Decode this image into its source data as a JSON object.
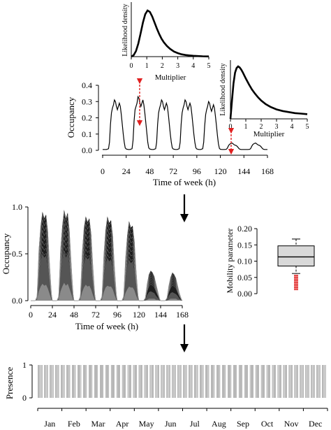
{
  "chart_data": [
    {
      "id": "density_top",
      "type": "line",
      "xlabel": "Multiplier",
      "ylabel": "Likelihood density",
      "xlim": [
        0,
        5
      ],
      "xticks": [
        "0",
        "1",
        "2",
        "3",
        "4",
        "5"
      ],
      "grid": false,
      "series": [
        {
          "x": [
            0,
            0.15,
            0.3,
            0.45,
            0.6,
            0.75,
            0.9,
            1.05,
            1.2,
            1.35,
            1.5,
            1.65,
            1.8,
            1.95,
            2.1,
            2.3,
            2.5,
            2.75,
            3,
            3.25,
            3.5,
            3.75,
            4,
            4.3,
            4.6,
            5
          ],
          "y": [
            0,
            0.03,
            0.12,
            0.28,
            0.5,
            0.74,
            0.92,
            1.0,
            0.97,
            0.87,
            0.74,
            0.61,
            0.49,
            0.39,
            0.31,
            0.23,
            0.17,
            0.11,
            0.075,
            0.05,
            0.035,
            0.025,
            0.018,
            0.012,
            0.008,
            0.005
          ]
        }
      ]
    },
    {
      "id": "occupancy_week",
      "type": "line",
      "xlabel": "Time of week (h)",
      "ylabel": "Occupancy",
      "xlim": [
        0,
        168
      ],
      "ylim": [
        0,
        0.4
      ],
      "xticks": [
        "0",
        "24",
        "48",
        "72",
        "96",
        "120",
        "144",
        "168"
      ],
      "yticks": [
        "0.0",
        "0.1",
        "0.2",
        "0.3",
        "0.4"
      ],
      "grid": false,
      "series": [
        {
          "x": [
            0,
            2,
            4,
            6,
            7,
            8,
            9,
            10,
            11,
            12,
            13,
            14,
            15,
            16,
            17,
            18,
            19,
            20,
            21,
            22,
            23,
            24,
            26,
            28,
            30,
            31,
            32,
            33,
            34,
            35,
            36,
            37,
            38,
            39,
            40,
            41,
            42,
            43,
            44,
            45,
            46,
            47,
            48,
            50,
            52,
            54,
            55,
            56,
            57,
            58,
            59,
            60,
            61,
            62,
            63,
            64,
            65,
            66,
            67,
            68,
            69,
            70,
            71,
            72,
            74,
            76,
            78,
            79,
            80,
            81,
            82,
            83,
            84,
            85,
            86,
            87,
            88,
            89,
            90,
            91,
            92,
            93,
            94,
            95,
            96,
            98,
            100,
            102,
            103,
            104,
            105,
            106,
            107,
            108,
            109,
            110,
            111,
            112,
            113,
            114,
            115,
            116,
            117,
            118,
            119,
            120,
            122,
            124,
            126,
            127,
            128,
            129,
            130,
            131,
            132,
            133,
            134,
            135,
            136,
            137,
            138,
            139,
            140,
            141,
            142,
            143,
            144,
            146,
            148,
            150,
            151,
            152,
            153,
            154,
            155,
            156,
            157,
            158,
            159,
            160,
            161,
            162,
            163,
            164,
            165,
            166,
            168
          ],
          "y": [
            0.005,
            0.005,
            0.005,
            0.01,
            0.05,
            0.16,
            0.23,
            0.26,
            0.28,
            0.31,
            0.3,
            0.27,
            0.25,
            0.27,
            0.29,
            0.27,
            0.22,
            0.16,
            0.1,
            0.05,
            0.015,
            0.008,
            0.005,
            0.005,
            0.01,
            0.06,
            0.18,
            0.25,
            0.27,
            0.29,
            0.33,
            0.32,
            0.29,
            0.27,
            0.29,
            0.31,
            0.28,
            0.23,
            0.17,
            0.11,
            0.05,
            0.015,
            0.008,
            0.005,
            0.005,
            0.01,
            0.05,
            0.16,
            0.23,
            0.26,
            0.28,
            0.31,
            0.3,
            0.27,
            0.25,
            0.27,
            0.29,
            0.27,
            0.22,
            0.16,
            0.1,
            0.05,
            0.015,
            0.008,
            0.005,
            0.005,
            0.01,
            0.05,
            0.16,
            0.23,
            0.26,
            0.28,
            0.31,
            0.3,
            0.27,
            0.25,
            0.27,
            0.29,
            0.27,
            0.22,
            0.16,
            0.1,
            0.05,
            0.015,
            0.008,
            0.005,
            0.005,
            0.01,
            0.05,
            0.15,
            0.22,
            0.25,
            0.27,
            0.3,
            0.29,
            0.26,
            0.24,
            0.26,
            0.28,
            0.26,
            0.21,
            0.15,
            0.09,
            0.04,
            0.012,
            0.006,
            0.005,
            0.005,
            0.006,
            0.012,
            0.025,
            0.035,
            0.04,
            0.043,
            0.045,
            0.04,
            0.035,
            0.032,
            0.03,
            0.025,
            0.018,
            0.01,
            0.007,
            0.005,
            0.005,
            0.005,
            0.005,
            0.005,
            0.005,
            0.006,
            0.012,
            0.025,
            0.035,
            0.04,
            0.043,
            0.045,
            0.04,
            0.035,
            0.032,
            0.03,
            0.025,
            0.018,
            0.01,
            0.007,
            0.005,
            0.005,
            0.005
          ]
        }
      ]
    },
    {
      "id": "density_right",
      "type": "line",
      "xlabel": "Multiplier",
      "ylabel": "Likelihood density",
      "xlim": [
        0,
        5
      ],
      "xticks": [
        "0",
        "1",
        "2",
        "3",
        "4",
        "5"
      ],
      "grid": false,
      "series": [
        {
          "x": [
            0,
            0.1,
            0.2,
            0.3,
            0.4,
            0.5,
            0.6,
            0.7,
            0.8,
            0.9,
            1.0,
            1.2,
            1.4,
            1.6,
            1.8,
            2.0,
            2.3,
            2.6,
            3.0,
            3.4,
            3.8,
            4.2,
            4.6,
            5
          ],
          "y": [
            0,
            0.35,
            0.68,
            0.88,
            0.97,
            1.0,
            0.98,
            0.94,
            0.89,
            0.83,
            0.77,
            0.66,
            0.56,
            0.48,
            0.41,
            0.35,
            0.28,
            0.23,
            0.18,
            0.15,
            0.13,
            0.11,
            0.1,
            0.09
          ]
        }
      ]
    },
    {
      "id": "occupancy_ensemble",
      "type": "area",
      "xlabel": "Time of week (h)",
      "ylabel": "Occupancy",
      "xlim": [
        0,
        168
      ],
      "ylim": [
        0,
        1
      ],
      "xticks": [
        "0",
        "24",
        "48",
        "72",
        "96",
        "120",
        "144",
        "168"
      ],
      "yticks": [
        "0.0",
        "0.5",
        "1.0"
      ],
      "grid": false,
      "series": [
        {
          "x": [
            0,
            5,
            7,
            9,
            11,
            13,
            15,
            17,
            19,
            21,
            23,
            24,
            29,
            31,
            33,
            35,
            37,
            39,
            41,
            43,
            45,
            47,
            48,
            53,
            55,
            57,
            59,
            61,
            63,
            65,
            67,
            69,
            71,
            72,
            77,
            79,
            81,
            83,
            85,
            87,
            89,
            91,
            93,
            95,
            96,
            101,
            103,
            105,
            107,
            109,
            111,
            113,
            115,
            117,
            119,
            120,
            125,
            127,
            129,
            131,
            133,
            135,
            137,
            139,
            141,
            143,
            144,
            149,
            151,
            153,
            155,
            157,
            159,
            161,
            163,
            165,
            167,
            168
          ],
          "y": [
            0,
            0,
            0.05,
            0.55,
            0.8,
            0.95,
            0.88,
            0.92,
            0.75,
            0.4,
            0.08,
            0,
            0,
            0.05,
            0.55,
            0.8,
            0.97,
            0.88,
            0.94,
            0.75,
            0.4,
            0.08,
            0,
            0,
            0.05,
            0.52,
            0.78,
            0.9,
            0.84,
            0.88,
            0.72,
            0.38,
            0.08,
            0,
            0,
            0.05,
            0.5,
            0.76,
            0.9,
            0.83,
            0.86,
            0.7,
            0.36,
            0.07,
            0,
            0,
            0.05,
            0.45,
            0.7,
            0.85,
            0.78,
            0.8,
            0.64,
            0.32,
            0.06,
            0,
            0,
            0.03,
            0.18,
            0.28,
            0.32,
            0.3,
            0.26,
            0.18,
            0.1,
            0.02,
            0,
            0,
            0.03,
            0.16,
            0.25,
            0.3,
            0.28,
            0.24,
            0.16,
            0.08,
            0.02,
            0
          ]
        },
        {
          "x": [
            0,
            5,
            7,
            9,
            11,
            13,
            15,
            17,
            19,
            21,
            23,
            24,
            29,
            31,
            33,
            35,
            37,
            39,
            41,
            43,
            45,
            47,
            48,
            53,
            55,
            57,
            59,
            61,
            63,
            65,
            67,
            69,
            71,
            72,
            77,
            79,
            81,
            83,
            85,
            87,
            89,
            91,
            93,
            95,
            96,
            101,
            103,
            105,
            107,
            109,
            111,
            113,
            115,
            117,
            119,
            120,
            125,
            127,
            129,
            131,
            133,
            135,
            137,
            139,
            141,
            143,
            144,
            149,
            151,
            153,
            155,
            157,
            159,
            161,
            163,
            165,
            167,
            168
          ],
          "y": [
            0,
            0,
            0.03,
            0.28,
            0.42,
            0.5,
            0.46,
            0.48,
            0.38,
            0.2,
            0.04,
            0,
            0,
            0.03,
            0.28,
            0.42,
            0.52,
            0.46,
            0.5,
            0.38,
            0.2,
            0.04,
            0,
            0,
            0.03,
            0.26,
            0.4,
            0.47,
            0.44,
            0.46,
            0.36,
            0.19,
            0.04,
            0,
            0,
            0.03,
            0.25,
            0.39,
            0.46,
            0.42,
            0.44,
            0.35,
            0.18,
            0.03,
            0,
            0,
            0.03,
            0.23,
            0.36,
            0.44,
            0.4,
            0.42,
            0.32,
            0.16,
            0.03,
            0,
            0,
            0.01,
            0.06,
            0.09,
            0.1,
            0.09,
            0.08,
            0.05,
            0.03,
            0.01,
            0,
            0,
            0.01,
            0.05,
            0.08,
            0.09,
            0.08,
            0.07,
            0.05,
            0.02,
            0.01,
            0
          ]
        },
        {
          "x": [
            0,
            5,
            7,
            9,
            11,
            13,
            15,
            17,
            19,
            21,
            23,
            24,
            29,
            31,
            33,
            35,
            37,
            39,
            41,
            43,
            45,
            47,
            48,
            53,
            55,
            57,
            59,
            61,
            63,
            65,
            67,
            69,
            71,
            72,
            77,
            79,
            81,
            83,
            85,
            87,
            89,
            91,
            93,
            95,
            96,
            101,
            103,
            105,
            107,
            109,
            111,
            113,
            115,
            117,
            119,
            120,
            125,
            127,
            129,
            131,
            133,
            135,
            137,
            139,
            141,
            143,
            144,
            149,
            151,
            153,
            155,
            157,
            159,
            161,
            163,
            165,
            167,
            168
          ],
          "y": [
            0,
            0,
            0.01,
            0.1,
            0.15,
            0.18,
            0.16,
            0.17,
            0.13,
            0.07,
            0.01,
            0,
            0,
            0.01,
            0.1,
            0.15,
            0.19,
            0.16,
            0.18,
            0.13,
            0.07,
            0.01,
            0,
            0,
            0.01,
            0.09,
            0.14,
            0.17,
            0.15,
            0.16,
            0.12,
            0.06,
            0.01,
            0,
            0,
            0.01,
            0.09,
            0.14,
            0.16,
            0.15,
            0.15,
            0.12,
            0.06,
            0.01,
            0,
            0,
            0.01,
            0.08,
            0.12,
            0.15,
            0.14,
            0.14,
            0.11,
            0.05,
            0.01,
            0,
            0,
            0,
            0.01,
            0.02,
            0.02,
            0.02,
            0.02,
            0.01,
            0.01,
            0,
            0,
            0,
            0,
            0.01,
            0.02,
            0.02,
            0.02,
            0.02,
            0.01,
            0.01,
            0,
            0
          ]
        }
      ]
    },
    {
      "id": "mobility_box",
      "type": "box",
      "ylabel": "Mobility parameter",
      "ylim": [
        0,
        0.2
      ],
      "yticks": [
        "0.00",
        "0.05",
        "0.10",
        "0.15",
        "0.20"
      ],
      "box": {
        "whisker_low": 0.062,
        "q1": 0.085,
        "median": 0.113,
        "q3": 0.147,
        "whisker_high": 0.168
      },
      "outliers": [
        0.012,
        0.015,
        0.018,
        0.021,
        0.024,
        0.027,
        0.03,
        0.033,
        0.036,
        0.039,
        0.042,
        0.045,
        0.048,
        0.051,
        0.054,
        0.057
      ],
      "outlier_color": "#e02020"
    },
    {
      "id": "presence_year",
      "type": "bar",
      "ylabel": "Presence",
      "yticks": [
        "0",
        "1"
      ],
      "xtick_labels": [
        "Jan",
        "Feb",
        "Mar",
        "Apr",
        "May",
        "Jun",
        "Jul",
        "Aug",
        "Sep",
        "Oct",
        "Nov",
        "Dec"
      ],
      "n_days": 365,
      "absent_days": [
        6,
        7,
        13,
        14,
        20,
        21,
        27,
        28,
        34,
        35,
        41,
        42,
        48,
        49,
        55,
        56,
        62,
        63,
        69,
        70,
        76,
        77,
        83,
        84,
        90,
        91,
        97,
        98,
        104,
        105,
        111,
        112,
        118,
        119,
        125,
        126,
        132,
        133,
        139,
        140,
        146,
        147,
        153,
        154,
        160,
        161,
        167,
        168,
        174,
        175,
        181,
        182,
        188,
        189,
        195,
        196,
        202,
        203,
        209,
        210,
        216,
        217,
        223,
        224,
        230,
        231,
        237,
        238,
        244,
        245,
        251,
        252,
        258,
        259,
        265,
        266,
        272,
        273,
        279,
        280,
        286,
        287,
        293,
        294,
        300,
        301,
        307,
        308,
        314,
        315,
        321,
        322,
        328,
        329,
        335,
        336,
        342,
        343,
        349,
        350,
        356,
        357,
        363,
        364
      ]
    }
  ],
  "colors": {
    "line": "#000000",
    "arrow_red": "#e02020",
    "ensemble_dark": "#1e1e1e",
    "ensemble_mid": "#555555",
    "ensemble_light": "#8a8a8a",
    "box_fill": "#d9d9d9",
    "presence_bar": "#7d7d7d"
  },
  "icons": [
    "red-double-arrow",
    "flow-down-arrow"
  ]
}
